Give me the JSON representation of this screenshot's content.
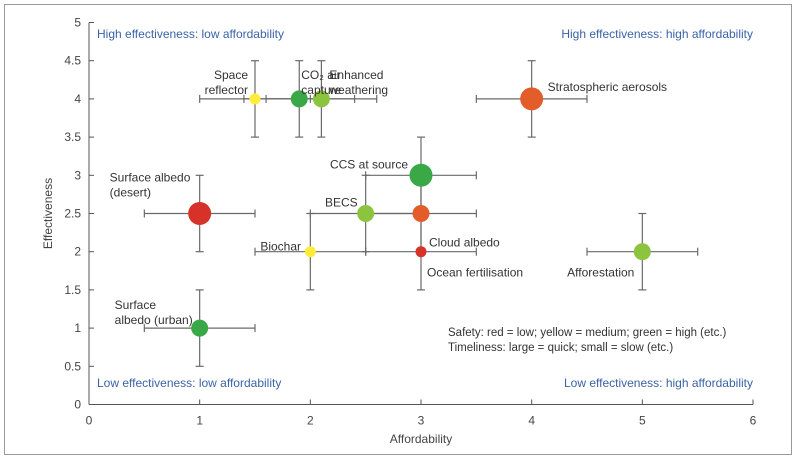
{
  "chart_data": {
    "type": "scatter",
    "xlabel": "Affordability",
    "ylabel": "Effectiveness",
    "xlim": [
      0,
      6
    ],
    "ylim": [
      0,
      5
    ],
    "xticks": [
      "0",
      "1",
      "2",
      "3",
      "4",
      "5",
      "6"
    ],
    "yticks": [
      "0",
      "0.5",
      "1",
      "1.5",
      "2",
      "2.5",
      "3",
      "3.5",
      "4",
      "4.5",
      "5"
    ],
    "colors": {
      "red": "#d7322a",
      "orange": "#e35d2a",
      "green": "#3aa846",
      "lightgreen": "#8cc43f",
      "yellow": "#ffec3a",
      "axis": "#555555",
      "quadrant": "#3a63a8"
    },
    "quadrants": {
      "top_left": "High effectiveness: low affordability",
      "top_right": "High effectiveness: high affordability",
      "bottom_left": "Low effectiveness: low affordability",
      "bottom_right": "Low effectiveness: high affordability"
    },
    "notes": [
      "Safety: red = low; yellow = medium; green = high (etc.)",
      "Timeliness: large = quick; small = slow (etc.)"
    ],
    "points": [
      {
        "label": [
          "Space",
          "reflector"
        ],
        "x": 1.5,
        "y": 4,
        "xerr": [
          1.0,
          2.0
        ],
        "yerr": [
          3.5,
          4.5
        ],
        "safety": "yellow",
        "timeliness": "small"
      },
      {
        "label": [
          "CO₂ air",
          "capture"
        ],
        "x": 1.9,
        "y": 4,
        "xerr": [
          1.4,
          2.4
        ],
        "yerr": [
          3.5,
          4.5
        ],
        "safety": "green",
        "timeliness": "medium"
      },
      {
        "label": [
          "Enhanced",
          "weathering"
        ],
        "x": 2.1,
        "y": 4,
        "xerr": [
          1.6,
          2.6
        ],
        "yerr": [
          3.5,
          4.5
        ],
        "safety": "lightgreen",
        "timeliness": "medium"
      },
      {
        "label": [
          "Stratospheric aerosols"
        ],
        "x": 4,
        "y": 4,
        "xerr": [
          3.5,
          4.5
        ],
        "yerr": [
          3.5,
          4.5
        ],
        "safety": "orange",
        "timeliness": "large"
      },
      {
        "label": [
          "CCS at source"
        ],
        "x": 3,
        "y": 3,
        "xerr": [
          2.5,
          3.5
        ],
        "yerr": [
          2.5,
          3.5
        ],
        "safety": "green",
        "timeliness": "large"
      },
      {
        "label": [
          "Surface albedo",
          "(desert)"
        ],
        "x": 1,
        "y": 2.5,
        "xerr": [
          0.5,
          1.5
        ],
        "yerr": [
          2,
          3
        ],
        "safety": "red",
        "timeliness": "large"
      },
      {
        "label": [
          "BECS"
        ],
        "x": 2.5,
        "y": 2.5,
        "xerr": [
          2,
          3
        ],
        "yerr": [
          2,
          3
        ],
        "safety": "lightgreen",
        "timeliness": "medium"
      },
      {
        "label": [
          "Cloud albedo"
        ],
        "x": 3,
        "y": 2.5,
        "xerr": [
          2.5,
          3.5
        ],
        "yerr": [
          2,
          3
        ],
        "safety": "orange",
        "timeliness": "medium"
      },
      {
        "label": [
          "Biochar"
        ],
        "x": 2,
        "y": 2,
        "xerr": [
          1.5,
          2.5
        ],
        "yerr": [
          1.5,
          2.5
        ],
        "safety": "yellow",
        "timeliness": "small"
      },
      {
        "label": [
          "Ocean fertilisation"
        ],
        "x": 3,
        "y": 2,
        "xerr": [
          2.5,
          3.5
        ],
        "yerr": [
          1.5,
          2.5
        ],
        "safety": "red",
        "timeliness": "small"
      },
      {
        "label": [
          "Afforestation"
        ],
        "x": 5,
        "y": 2,
        "xerr": [
          4.5,
          5.5
        ],
        "yerr": [
          1.5,
          2.5
        ],
        "safety": "lightgreen",
        "timeliness": "medium"
      },
      {
        "label": [
          "Surface",
          "albedo (urban)"
        ],
        "x": 1,
        "y": 1,
        "xerr": [
          0.5,
          1.5
        ],
        "yerr": [
          0.5,
          1.5
        ],
        "safety": "green",
        "timeliness": "medium"
      }
    ]
  }
}
